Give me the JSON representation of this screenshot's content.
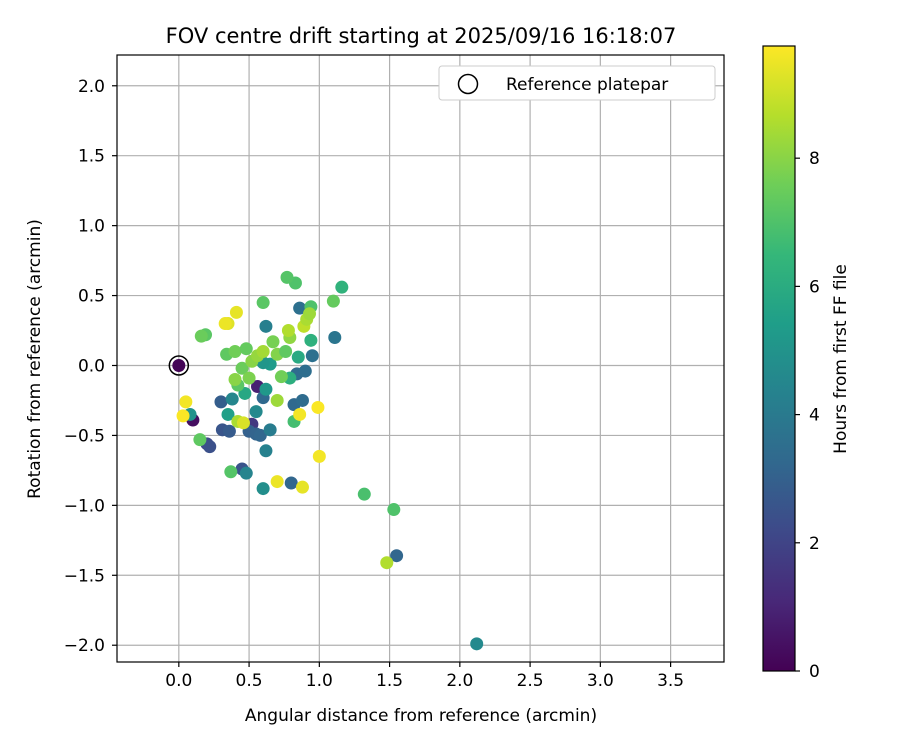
{
  "chart_data": {
    "type": "scatter",
    "title": "FOV centre drift starting at 2025/09/16 16:18:07",
    "xlabel": "Angular distance from reference (arcmin)",
    "ylabel": "Rotation from reference (arcmin)",
    "xlim": [
      -0.44,
      3.88
    ],
    "ylim": [
      -2.12,
      2.22
    ],
    "xticks": [
      0.0,
      0.5,
      1.0,
      1.5,
      2.0,
      2.5,
      3.0,
      3.5
    ],
    "xtick_labels": [
      "0.0",
      "0.5",
      "1.0",
      "1.5",
      "2.0",
      "2.5",
      "3.0",
      "3.5"
    ],
    "yticks": [
      -2.0,
      -1.5,
      -1.0,
      -0.5,
      0.0,
      0.5,
      1.0,
      1.5,
      2.0
    ],
    "ytick_labels": [
      "−2.0",
      "−1.5",
      "−1.0",
      "−0.5",
      "0.0",
      "0.5",
      "1.0",
      "1.5",
      "2.0"
    ],
    "grid": true,
    "legend": {
      "placement": "top-right",
      "entries": [
        "Reference platepar"
      ]
    },
    "reference_point": {
      "x": 0.0,
      "y": 0.0,
      "label": "Reference platepar"
    },
    "colorbar": {
      "label": "Hours from first FF file",
      "range": [
        0,
        9.75
      ],
      "ticks": [
        0,
        2,
        4,
        6,
        8
      ],
      "tick_labels": [
        "0",
        "2",
        "4",
        "6",
        "8"
      ],
      "colormap": "viridis",
      "colormap_stops": [
        "#440154",
        "#482878",
        "#3e4989",
        "#31688e",
        "#26828e",
        "#1f9e89",
        "#35b779",
        "#6ece58",
        "#b5de2b",
        "#fde725"
      ]
    },
    "points": [
      {
        "x": 0.0,
        "y": 0.0,
        "h": 0.1
      },
      {
        "x": 0.1,
        "y": -0.39,
        "h": 0.4
      },
      {
        "x": 0.56,
        "y": -0.15,
        "h": 0.9
      },
      {
        "x": 0.52,
        "y": -0.42,
        "h": 1.6
      },
      {
        "x": 0.2,
        "y": -0.56,
        "h": 2.2
      },
      {
        "x": 0.22,
        "y": -0.58,
        "h": 2.4
      },
      {
        "x": 0.31,
        "y": -0.46,
        "h": 2.6
      },
      {
        "x": 0.36,
        "y": -0.47,
        "h": 2.8
      },
      {
        "x": 0.3,
        "y": -0.26,
        "h": 2.9
      },
      {
        "x": 0.45,
        "y": -0.74,
        "h": 2.5
      },
      {
        "x": 0.5,
        "y": -0.47,
        "h": 3.0
      },
      {
        "x": 0.55,
        "y": -0.49,
        "h": 3.1
      },
      {
        "x": 0.58,
        "y": -0.5,
        "h": 3.2
      },
      {
        "x": 0.6,
        "y": -0.23,
        "h": 3.3
      },
      {
        "x": 0.8,
        "y": -0.84,
        "h": 3.2
      },
      {
        "x": 0.82,
        "y": -0.28,
        "h": 3.3
      },
      {
        "x": 0.86,
        "y": 0.41,
        "h": 3.6
      },
      {
        "x": 0.84,
        "y": -0.06,
        "h": 3.4
      },
      {
        "x": 0.9,
        "y": -0.04,
        "h": 3.5
      },
      {
        "x": 0.95,
        "y": 0.07,
        "h": 3.6
      },
      {
        "x": 0.88,
        "y": -0.25,
        "h": 3.4
      },
      {
        "x": 1.11,
        "y": 0.2,
        "h": 3.8
      },
      {
        "x": 1.55,
        "y": -1.36,
        "h": 3.2
      },
      {
        "x": 2.12,
        "y": -1.99,
        "h": 4.6
      },
      {
        "x": 0.62,
        "y": 0.28,
        "h": 4.2
      },
      {
        "x": 0.62,
        "y": -0.61,
        "h": 4.3
      },
      {
        "x": 0.65,
        "y": -0.46,
        "h": 4.1
      },
      {
        "x": 0.48,
        "y": -0.77,
        "h": 4.4
      },
      {
        "x": 0.38,
        "y": -0.24,
        "h": 4.5
      },
      {
        "x": 0.55,
        "y": -0.33,
        "h": 4.6
      },
      {
        "x": 0.6,
        "y": -0.88,
        "h": 4.8
      },
      {
        "x": 0.08,
        "y": -0.35,
        "h": 5.0
      },
      {
        "x": 0.62,
        "y": -0.17,
        "h": 5.2
      },
      {
        "x": 0.65,
        "y": 0.01,
        "h": 5.3
      },
      {
        "x": 0.6,
        "y": 0.02,
        "h": 5.1
      },
      {
        "x": 0.35,
        "y": -0.35,
        "h": 5.5
      },
      {
        "x": 0.47,
        "y": -0.2,
        "h": 5.8
      },
      {
        "x": 0.85,
        "y": 0.06,
        "h": 5.9
      },
      {
        "x": 1.16,
        "y": 0.56,
        "h": 6.3
      },
      {
        "x": 0.94,
        "y": 0.18,
        "h": 6.2
      },
      {
        "x": 0.79,
        "y": -0.09,
        "h": 6.1
      },
      {
        "x": 1.32,
        "y": -0.92,
        "h": 6.9
      },
      {
        "x": 1.53,
        "y": -1.03,
        "h": 7.0
      },
      {
        "x": 0.83,
        "y": 0.59,
        "h": 7.0
      },
      {
        "x": 0.77,
        "y": 0.63,
        "h": 7.1
      },
      {
        "x": 0.6,
        "y": 0.45,
        "h": 7.2
      },
      {
        "x": 0.94,
        "y": 0.42,
        "h": 7.0
      },
      {
        "x": 1.1,
        "y": 0.46,
        "h": 7.4
      },
      {
        "x": 0.37,
        "y": -0.76,
        "h": 7.1
      },
      {
        "x": 0.82,
        "y": -0.4,
        "h": 6.8
      },
      {
        "x": 0.15,
        "y": -0.53,
        "h": 7.3
      },
      {
        "x": 0.19,
        "y": 0.22,
        "h": 7.2
      },
      {
        "x": 0.16,
        "y": 0.21,
        "h": 7.5
      },
      {
        "x": 0.34,
        "y": 0.08,
        "h": 7.3
      },
      {
        "x": 0.4,
        "y": 0.1,
        "h": 7.6
      },
      {
        "x": 0.48,
        "y": 0.12,
        "h": 7.4
      },
      {
        "x": 0.42,
        "y": -0.14,
        "h": 7.2
      },
      {
        "x": 0.45,
        "y": -0.02,
        "h": 7.5
      },
      {
        "x": 0.5,
        "y": -0.09,
        "h": 7.8
      },
      {
        "x": 0.52,
        "y": 0.03,
        "h": 8.0
      },
      {
        "x": 0.56,
        "y": 0.07,
        "h": 8.2
      },
      {
        "x": 0.6,
        "y": 0.1,
        "h": 8.4
      },
      {
        "x": 0.67,
        "y": 0.17,
        "h": 7.7
      },
      {
        "x": 0.7,
        "y": 0.08,
        "h": 7.9
      },
      {
        "x": 0.73,
        "y": -0.08,
        "h": 7.6
      },
      {
        "x": 0.76,
        "y": 0.1,
        "h": 7.3
      },
      {
        "x": 0.79,
        "y": 0.2,
        "h": 8.1
      },
      {
        "x": 0.78,
        "y": 0.25,
        "h": 8.6
      },
      {
        "x": 0.89,
        "y": 0.28,
        "h": 8.8
      },
      {
        "x": 0.91,
        "y": 0.33,
        "h": 8.5
      },
      {
        "x": 0.93,
        "y": 0.37,
        "h": 8.3
      },
      {
        "x": 0.7,
        "y": -0.25,
        "h": 8.3
      },
      {
        "x": 0.42,
        "y": -0.4,
        "h": 8.5
      },
      {
        "x": 1.48,
        "y": -1.41,
        "h": 8.6
      },
      {
        "x": 0.4,
        "y": -0.1,
        "h": 8.0
      },
      {
        "x": 0.35,
        "y": 0.3,
        "h": 9.3
      },
      {
        "x": 0.33,
        "y": 0.3,
        "h": 9.5
      },
      {
        "x": 0.41,
        "y": 0.38,
        "h": 9.4
      },
      {
        "x": 0.05,
        "y": -0.26,
        "h": 9.6
      },
      {
        "x": 0.03,
        "y": -0.36,
        "h": 9.7
      },
      {
        "x": 0.7,
        "y": -0.83,
        "h": 9.5
      },
      {
        "x": 0.86,
        "y": -0.35,
        "h": 9.6
      },
      {
        "x": 0.88,
        "y": -0.87,
        "h": 9.4
      },
      {
        "x": 0.99,
        "y": -0.3,
        "h": 9.7
      },
      {
        "x": 1.0,
        "y": -0.65,
        "h": 9.6
      },
      {
        "x": 0.46,
        "y": -0.41,
        "h": 9.2
      }
    ]
  }
}
